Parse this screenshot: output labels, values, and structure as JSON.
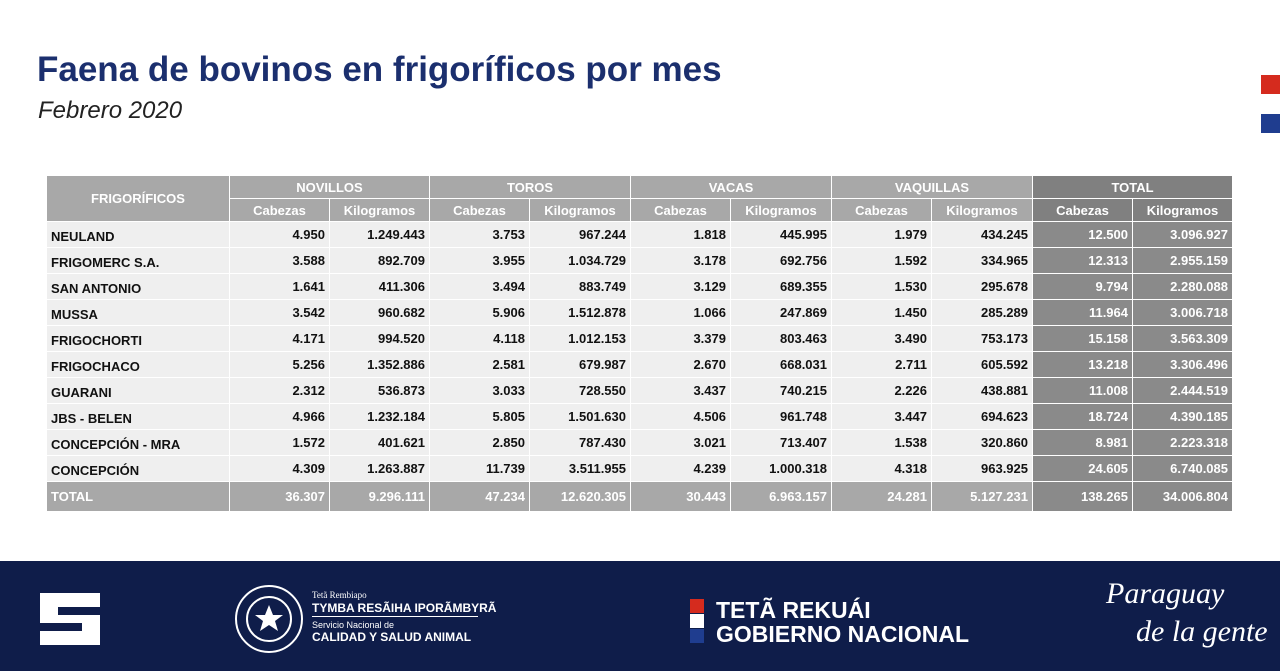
{
  "header": {
    "title": "Faena de bovinos en frigoríficos por mes",
    "subtitle": "Febrero 2020"
  },
  "table": {
    "corner": "FRIGORÍFICOS",
    "groups": [
      "NOVILLOS",
      "TOROS",
      "VACAS",
      "VAQUILLAS",
      "TOTAL"
    ],
    "subheaders": [
      "Cabezas",
      "Kilogramos",
      "Cabezas",
      "Kilogramos",
      "Cabezas",
      "Kilogramos",
      "Cabezas",
      "Kilogramos",
      "Cabezas",
      "Kilogramos"
    ],
    "rows": [
      [
        "NEULAND",
        "4.950",
        "1.249.443",
        "3.753",
        "967.244",
        "1.818",
        "445.995",
        "1.979",
        "434.245",
        "12.500",
        "3.096.927"
      ],
      [
        "FRIGOMERC S.A.",
        "3.588",
        "892.709",
        "3.955",
        "1.034.729",
        "3.178",
        "692.756",
        "1.592",
        "334.965",
        "12.313",
        "2.955.159"
      ],
      [
        "SAN ANTONIO",
        "1.641",
        "411.306",
        "3.494",
        "883.749",
        "3.129",
        "689.355",
        "1.530",
        "295.678",
        "9.794",
        "2.280.088"
      ],
      [
        "MUSSA",
        "3.542",
        "960.682",
        "5.906",
        "1.512.878",
        "1.066",
        "247.869",
        "1.450",
        "285.289",
        "11.964",
        "3.006.718"
      ],
      [
        "FRIGOCHORTI",
        "4.171",
        "994.520",
        "4.118",
        "1.012.153",
        "3.379",
        "803.463",
        "3.490",
        "753.173",
        "15.158",
        "3.563.309"
      ],
      [
        "FRIGOCHACO",
        "5.256",
        "1.352.886",
        "2.581",
        "679.987",
        "2.670",
        "668.031",
        "2.711",
        "605.592",
        "13.218",
        "3.306.496"
      ],
      [
        "GUARANI",
        "2.312",
        "536.873",
        "3.033",
        "728.550",
        "3.437",
        "740.215",
        "2.226",
        "438.881",
        "11.008",
        "2.444.519"
      ],
      [
        "JBS - BELEN",
        "4.966",
        "1.232.184",
        "5.805",
        "1.501.630",
        "4.506",
        "961.748",
        "3.447",
        "694.623",
        "18.724",
        "4.390.185"
      ],
      [
        "CONCEPCIÓN - MRA",
        "1.572",
        "401.621",
        "2.850",
        "787.430",
        "3.021",
        "713.407",
        "1.538",
        "320.860",
        "8.981",
        "2.223.318"
      ],
      [
        "CONCEPCIÓN",
        "4.309",
        "1.263.887",
        "11.739",
        "3.511.955",
        "4.239",
        "1.000.318",
        "4.318",
        "963.925",
        "24.605",
        "6.740.085"
      ]
    ],
    "total": [
      "TOTAL",
      "36.307",
      "9.296.111",
      "47.234",
      "12.620.305",
      "30.443",
      "6.963.157",
      "24.281",
      "5.127.231",
      "138.265",
      "34.006.804"
    ]
  },
  "footer": {
    "senacsa_small": "Tetã Rembiapo",
    "senacsa_big": "TYMBA RESÃIHA IPORÃMBYRÃ",
    "senacsa_sub": "Servicio Nacional de",
    "senacsa_name": "CALIDAD Y SALUD ANIMAL",
    "gov_line1": "TETÃ REKUÁI",
    "gov_line2": "GOBIERNO NACIONAL",
    "brand1": "Paraguay",
    "brand2": "de la gente"
  }
}
